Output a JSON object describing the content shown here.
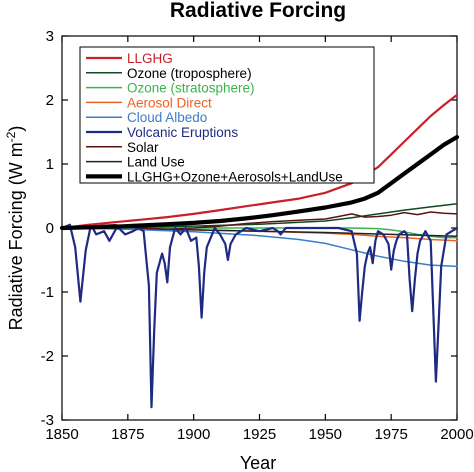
{
  "chart_data": {
    "type": "line",
    "title": "Radiative Forcing",
    "xlabel": "Year",
    "ylabel": "Radiative Forcing (W m",
    "ylabel_sup": "-2",
    "ylabel_close": ")",
    "xlim": [
      1850,
      2000
    ],
    "ylim": [
      -3,
      3
    ],
    "xticks": [
      "1850",
      "1875",
      "1900",
      "1925",
      "1950",
      "1975",
      "2000"
    ],
    "yticks": [
      "3",
      "2",
      "1",
      "0",
      "-1",
      "-2",
      "-3"
    ],
    "grid": false,
    "legend_position": "top-left",
    "series": [
      {
        "name": "LLGHG",
        "color": "#c8202a",
        "width": 2.2,
        "x": [
          1850,
          1860,
          1870,
          1880,
          1890,
          1900,
          1910,
          1920,
          1930,
          1940,
          1950,
          1960,
          1965,
          1970,
          1975,
          1980,
          1985,
          1990,
          1995,
          2000
        ],
        "y": [
          0.0,
          0.05,
          0.09,
          0.13,
          0.17,
          0.22,
          0.28,
          0.34,
          0.4,
          0.46,
          0.55,
          0.7,
          0.82,
          0.95,
          1.15,
          1.35,
          1.55,
          1.75,
          1.92,
          2.08
        ]
      },
      {
        "name": "Ozone (troposphere)",
        "color": "#0d4a1f",
        "width": 1.5,
        "x": [
          1850,
          1875,
          1900,
          1925,
          1950,
          1960,
          1970,
          1980,
          1990,
          2000
        ],
        "y": [
          0.0,
          0.01,
          0.03,
          0.06,
          0.11,
          0.16,
          0.22,
          0.28,
          0.33,
          0.38
        ]
      },
      {
        "name": "Ozone (stratosphere)",
        "color": "#3ab44a",
        "width": 1.5,
        "x": [
          1850,
          1960,
          1970,
          1975,
          1980,
          1985,
          1990,
          1995,
          2000
        ],
        "y": [
          0.0,
          0.0,
          -0.01,
          -0.03,
          -0.06,
          -0.1,
          -0.13,
          -0.15,
          -0.15
        ]
      },
      {
        "name": "Aerosol Direct",
        "color": "#ee6226",
        "width": 1.5,
        "x": [
          1850,
          1900,
          1925,
          1950,
          1960,
          1970,
          1980,
          1990,
          2000
        ],
        "y": [
          0.0,
          -0.03,
          -0.05,
          -0.08,
          -0.1,
          -0.13,
          -0.15,
          -0.18,
          -0.2
        ]
      },
      {
        "name": "Cloud Albedo",
        "color": "#3a7dc9",
        "width": 1.5,
        "x": [
          1850,
          1875,
          1900,
          1925,
          1940,
          1950,
          1960,
          1970,
          1980,
          1990,
          2000
        ],
        "y": [
          0.0,
          -0.02,
          -0.06,
          -0.12,
          -0.18,
          -0.24,
          -0.34,
          -0.44,
          -0.52,
          -0.58,
          -0.6
        ]
      },
      {
        "name": "Volcanic Eruptions",
        "color": "#1f2a82",
        "width": 2.2,
        "x": [
          1850,
          1853,
          1855,
          1857,
          1859,
          1861,
          1863,
          1866,
          1868,
          1871,
          1874,
          1877,
          1879,
          1881,
          1883,
          1884,
          1885,
          1886,
          1888,
          1889,
          1890,
          1891,
          1893,
          1895,
          1897,
          1899,
          1901,
          1902,
          1903,
          1904,
          1905,
          1907,
          1908,
          1910,
          1912,
          1913,
          1914,
          1916,
          1920,
          1925,
          1930,
          1932,
          1933,
          1935,
          1940,
          1945,
          1950,
          1955,
          1960,
          1962,
          1963,
          1964,
          1965,
          1966,
          1967,
          1968,
          1969,
          1970,
          1972,
          1974,
          1975,
          1976,
          1977,
          1978,
          1980,
          1981,
          1982,
          1983,
          1984,
          1985,
          1986,
          1988,
          1990,
          1991,
          1992,
          1993,
          1994,
          1996,
          2000
        ],
        "y": [
          0.0,
          0.05,
          -0.3,
          -1.15,
          -0.35,
          0.05,
          -0.1,
          -0.05,
          -0.2,
          0.02,
          -0.1,
          -0.05,
          0.0,
          -0.05,
          -0.9,
          -2.8,
          -1.6,
          -0.7,
          -0.4,
          -0.55,
          -0.85,
          -0.3,
          0.0,
          -0.1,
          0.0,
          -0.2,
          -0.15,
          -0.6,
          -1.4,
          -0.7,
          -0.3,
          -0.1,
          0.0,
          -0.1,
          -0.25,
          -0.5,
          -0.25,
          -0.1,
          0.0,
          -0.05,
          0.0,
          -0.05,
          -0.1,
          0.0,
          0.0,
          0.0,
          0.0,
          0.0,
          -0.05,
          -0.4,
          -1.45,
          -1.0,
          -0.6,
          -0.4,
          -0.3,
          -0.55,
          -0.2,
          -0.05,
          -0.1,
          -0.25,
          -0.65,
          -0.35,
          -0.2,
          -0.1,
          -0.05,
          -0.1,
          -0.8,
          -1.3,
          -0.8,
          -0.4,
          -0.2,
          -0.05,
          -0.2,
          -1.3,
          -2.4,
          -1.5,
          -0.6,
          -0.1,
          0.0
        ]
      },
      {
        "name": "Solar",
        "color": "#5a1414",
        "width": 1.5,
        "x": [
          1850,
          1860,
          1870,
          1880,
          1890,
          1900,
          1910,
          1920,
          1930,
          1940,
          1950,
          1955,
          1960,
          1965,
          1970,
          1975,
          1980,
          1985,
          1990,
          1995,
          2000
        ],
        "y": [
          0.0,
          0.03,
          0.05,
          0.0,
          -0.02,
          0.0,
          0.03,
          0.07,
          0.1,
          0.12,
          0.14,
          0.18,
          0.22,
          0.17,
          0.18,
          0.2,
          0.24,
          0.21,
          0.25,
          0.23,
          0.22
        ]
      },
      {
        "name": "Land Use",
        "color": "#222222",
        "width": 1.5,
        "x": [
          1850,
          1900,
          1950,
          1975,
          2000
        ],
        "y": [
          0.0,
          -0.03,
          -0.07,
          -0.1,
          -0.13
        ]
      },
      {
        "name": "LLGHG+Ozone+Aerosols+LandUse",
        "color": "#000000",
        "width": 4.2,
        "x": [
          1850,
          1870,
          1890,
          1900,
          1910,
          1920,
          1930,
          1940,
          1950,
          1960,
          1965,
          1970,
          1975,
          1980,
          1985,
          1990,
          1995,
          2000
        ],
        "y": [
          0.0,
          0.02,
          0.06,
          0.08,
          0.11,
          0.15,
          0.2,
          0.26,
          0.32,
          0.4,
          0.46,
          0.55,
          0.7,
          0.85,
          1.0,
          1.15,
          1.3,
          1.42
        ]
      }
    ]
  }
}
